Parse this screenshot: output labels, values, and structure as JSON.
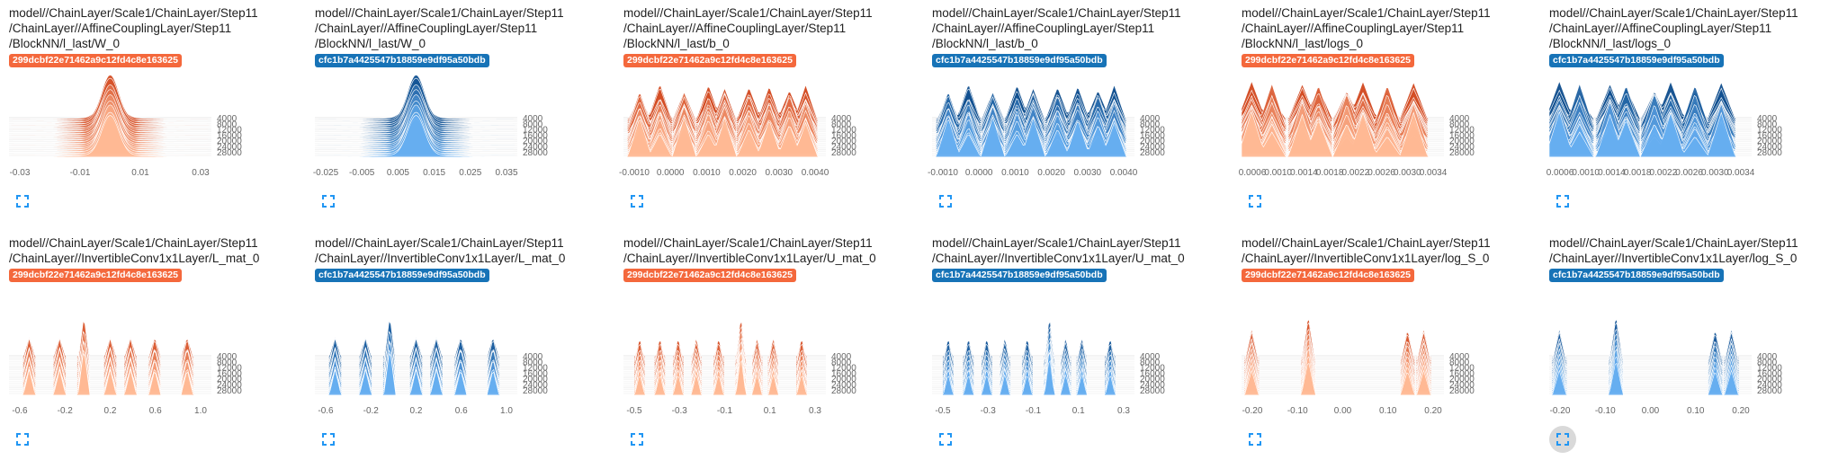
{
  "colors": {
    "orange_run": "#f4683c",
    "blue_run": "#1773b7",
    "orange_dark": "#d2481f",
    "orange_light": "#ffb995",
    "blue_dark": "#0d4c8c",
    "blue_light": "#66aef0",
    "axis_text": "#666666",
    "expand_icon": "#2196f3"
  },
  "runs": {
    "orange": "299dcbf22e71462a9c12fd4c8e163625",
    "blue": "cfc1b7a4425547b18859e9df95a50bdb"
  },
  "y_ticks": [
    "4000",
    "8000",
    "12000",
    "16000",
    "20000",
    "24000",
    "28000"
  ],
  "cards": [
    {
      "title_lines": [
        "model//ChainLayer/Scale1/ChainLayer/Step11",
        "/ChainLayer//AffineCouplingLayer/Step11",
        "/BlockNN/l_last/W_0"
      ],
      "run": "299dcbf22e71462a9c12fd4c8e163625",
      "color": "orange",
      "shape": "center",
      "x_ticks": [
        "-0.03",
        "-0.01",
        "0.01",
        "0.03"
      ]
    },
    {
      "title_lines": [
        "model//ChainLayer/Scale1/ChainLayer/Step11",
        "/ChainLayer//AffineCouplingLayer/Step11",
        "/BlockNN/l_last/W_0"
      ],
      "run": "cfc1b7a4425547b18859e9df95a50bdb",
      "color": "blue",
      "shape": "center",
      "x_ticks": [
        "-0.025",
        "-0.005",
        "0.005",
        "0.015",
        "0.025",
        "0.035"
      ]
    },
    {
      "title_lines": [
        "model//ChainLayer/Scale1/ChainLayer/Step11",
        "/ChainLayer//AffineCouplingLayer/Step11",
        "/BlockNN/l_last/b_0"
      ],
      "run": "299dcbf22e71462a9c12fd4c8e163625",
      "color": "orange",
      "shape": "wide",
      "x_ticks": [
        "-0.0010",
        "0.0000",
        "0.0010",
        "0.0020",
        "0.0030",
        "0.0040"
      ]
    },
    {
      "title_lines": [
        "model//ChainLayer/Scale1/ChainLayer/Step11",
        "/ChainLayer//AffineCouplingLayer/Step11",
        "/BlockNN/l_last/b_0"
      ],
      "run": "cfc1b7a4425547b18859e9df95a50bdb",
      "color": "blue",
      "shape": "wide",
      "x_ticks": [
        "-0.0010",
        "0.0000",
        "0.0010",
        "0.0020",
        "0.0030",
        "0.0040"
      ]
    },
    {
      "title_lines": [
        "model//ChainLayer/Scale1/ChainLayer/Step11",
        "/ChainLayer//AffineCouplingLayer/Step11",
        "/BlockNN/l_last/logs_0"
      ],
      "run": "299dcbf22e71462a9c12fd4c8e163625",
      "color": "orange",
      "shape": "logs",
      "x_ticks": [
        "0.0006",
        "0.0010",
        "0.0014",
        "0.0018",
        "0.0022",
        "0.0026",
        "0.0030",
        "0.0034"
      ]
    },
    {
      "title_lines": [
        "model//ChainLayer/Scale1/ChainLayer/Step11",
        "/ChainLayer//AffineCouplingLayer/Step11",
        "/BlockNN/l_last/logs_0"
      ],
      "run": "cfc1b7a4425547b18859e9df95a50bdb",
      "color": "blue",
      "shape": "logs",
      "x_ticks": [
        "0.0006",
        "0.0010",
        "0.0014",
        "0.0018",
        "0.0022",
        "0.0026",
        "0.0030",
        "0.0034"
      ]
    },
    {
      "title_lines": [
        "model//ChainLayer/Scale1/ChainLayer/Step11",
        "/ChainLayer//InvertibleConv1x1Layer/L_mat_0"
      ],
      "run": "299dcbf22e71462a9c12fd4c8e163625",
      "color": "orange",
      "shape": "spikes_l",
      "x_ticks": [
        "-0.6",
        "-0.2",
        "0.2",
        "0.6",
        "1.0"
      ]
    },
    {
      "title_lines": [
        "model//ChainLayer/Scale1/ChainLayer/Step11",
        "/ChainLayer//InvertibleConv1x1Layer/L_mat_0"
      ],
      "run": "cfc1b7a4425547b18859e9df95a50bdb",
      "color": "blue",
      "shape": "spikes_l",
      "x_ticks": [
        "-0.6",
        "-0.2",
        "0.2",
        "0.6",
        "1.0"
      ]
    },
    {
      "title_lines": [
        "model//ChainLayer/Scale1/ChainLayer/Step11",
        "/ChainLayer//InvertibleConv1x1Layer/U_mat_0"
      ],
      "run": "299dcbf22e71462a9c12fd4c8e163625",
      "color": "orange",
      "shape": "spikes_u",
      "x_ticks": [
        "-0.5",
        "-0.3",
        "-0.1",
        "0.1",
        "0.3"
      ]
    },
    {
      "title_lines": [
        "model//ChainLayer/Scale1/ChainLayer/Step11",
        "/ChainLayer//InvertibleConv1x1Layer/U_mat_0"
      ],
      "run": "cfc1b7a4425547b18859e9df95a50bdb",
      "color": "blue",
      "shape": "spikes_u",
      "x_ticks": [
        "-0.5",
        "-0.3",
        "-0.1",
        "0.1",
        "0.3"
      ]
    },
    {
      "title_lines": [
        "model//ChainLayer/Scale1/ChainLayer/Step11",
        "/ChainLayer//InvertibleConv1x1Layer/log_S_0"
      ],
      "run": "299dcbf22e71462a9c12fd4c8e163625",
      "color": "orange",
      "shape": "spikes_s",
      "x_ticks": [
        "-0.20",
        "-0.10",
        "0.00",
        "0.10",
        "0.20"
      ]
    },
    {
      "title_lines": [
        "model//ChainLayer/Scale1/ChainLayer/Step11",
        "/ChainLayer//InvertibleConv1x1Layer/log_S_0"
      ],
      "run": "cfc1b7a4425547b18859e9df95a50bdb",
      "color": "blue",
      "shape": "spikes_s",
      "x_ticks": [
        "-0.20",
        "-0.10",
        "0.00",
        "0.10",
        "0.20"
      ]
    }
  ]
}
